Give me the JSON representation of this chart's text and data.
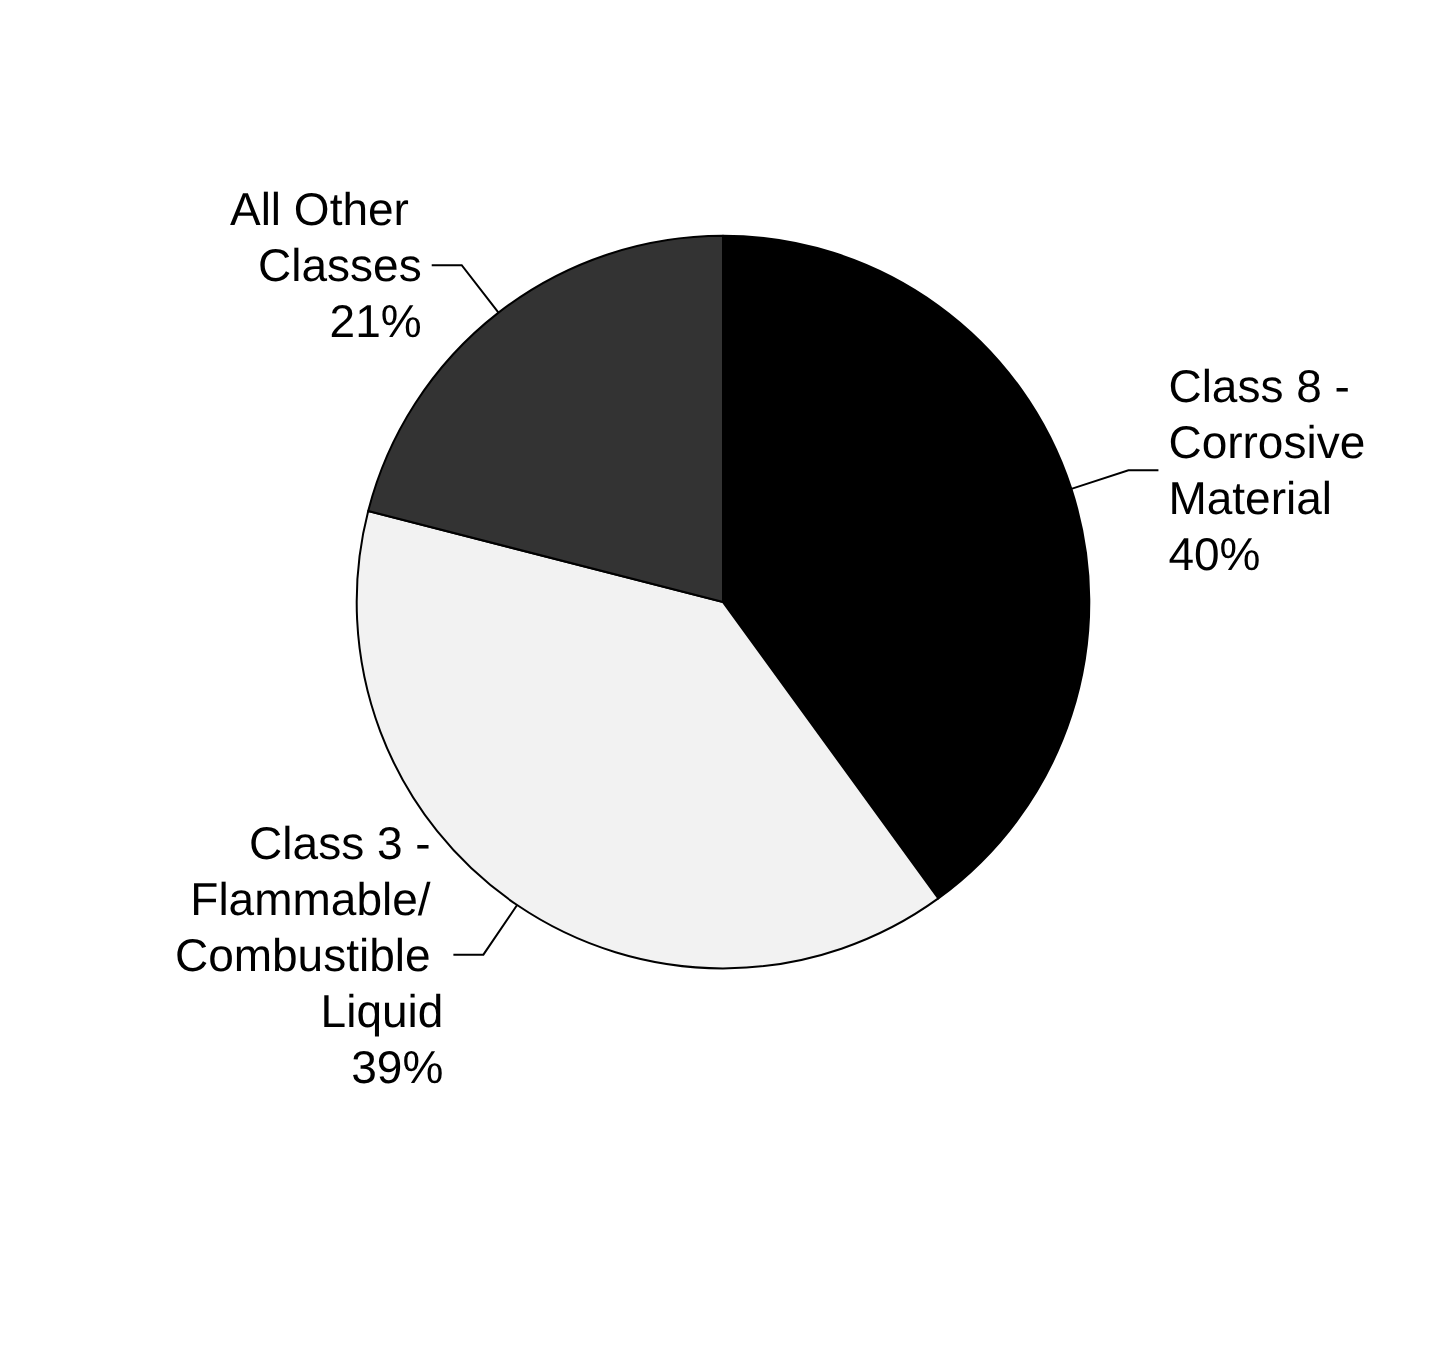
{
  "chart_data": {
    "type": "pie",
    "categories": [
      "Class 8 - Corrosive Material",
      "Class 3 - Flammable/ Combustible Liquid",
      "All Other Classes"
    ],
    "values": [
      40,
      39,
      21
    ],
    "colors": [
      "#000000",
      "#f2f2f2",
      "#333333"
    ],
    "value_labels": [
      "40%",
      "39%",
      "21%"
    ],
    "legend": false
  }
}
